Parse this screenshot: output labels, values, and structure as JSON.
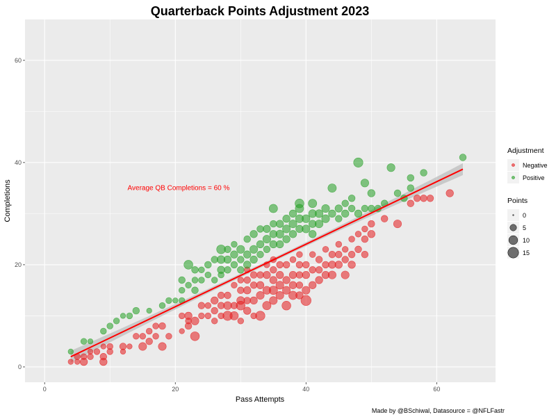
{
  "colors": {
    "negative": "#e41a1c",
    "positive": "#229e22",
    "fit_line": "#ff0000",
    "ribbon": "#bdbdbd",
    "panel": "#ebebeb",
    "grid": "#ffffff"
  },
  "chart_data": {
    "type": "scatter",
    "title": "Quarterback Points Adjustment 2023",
    "xlabel": "Pass Attempts",
    "ylabel": "Completions",
    "xlim": [
      -3,
      69
    ],
    "ylim": [
      -3,
      68
    ],
    "x_ticks": [
      0,
      20,
      40,
      60
    ],
    "y_ticks": [
      0,
      20,
      40,
      60
    ],
    "grid": true,
    "annotation": {
      "text": "Average QB Completions = 60 %",
      "x": 20.5,
      "y": 35
    },
    "fit_line": {
      "x_start": 4,
      "y_start": 2,
      "x_end": 64,
      "y_end": 38.7
    },
    "caption": "Made by @BSchiwal, Datasource = @NFLFastr",
    "legend": {
      "position": "right",
      "color_title": "Adjustment",
      "color_entries": [
        {
          "label": "Negative",
          "key": "negative"
        },
        {
          "label": "Positive",
          "key": "positive"
        }
      ],
      "size_title": "Points",
      "size_entries": [
        {
          "label": "0",
          "value": 0
        },
        {
          "label": "5",
          "value": 5
        },
        {
          "label": "10",
          "value": 10
        },
        {
          "label": "15",
          "value": 15
        }
      ]
    },
    "series": [
      {
        "name": "Negative",
        "points": [
          [
            4,
            1,
            2
          ],
          [
            5,
            2,
            3
          ],
          [
            5,
            1,
            2
          ],
          [
            6,
            1,
            5
          ],
          [
            6,
            2,
            3
          ],
          [
            7,
            2,
            3
          ],
          [
            7,
            3,
            2
          ],
          [
            8,
            3,
            3
          ],
          [
            9,
            1,
            5
          ],
          [
            9,
            2,
            4
          ],
          [
            9,
            4,
            2
          ],
          [
            10,
            3,
            3
          ],
          [
            10,
            4,
            3
          ],
          [
            12,
            3,
            2
          ],
          [
            12,
            4,
            4
          ],
          [
            13,
            4,
            2
          ],
          [
            14,
            6,
            3
          ],
          [
            15,
            4,
            6
          ],
          [
            15,
            6,
            3
          ],
          [
            16,
            5,
            4
          ],
          [
            16,
            7,
            3
          ],
          [
            17,
            6,
            3
          ],
          [
            17,
            8,
            3
          ],
          [
            18,
            4,
            6
          ],
          [
            18,
            8,
            4
          ],
          [
            19,
            6,
            3
          ],
          [
            21,
            7,
            2
          ],
          [
            21,
            10,
            3
          ],
          [
            22,
            8,
            4
          ],
          [
            22,
            9,
            3
          ],
          [
            22,
            10,
            5
          ],
          [
            23,
            6,
            8
          ],
          [
            23,
            9,
            6
          ],
          [
            24,
            10,
            3
          ],
          [
            24,
            12,
            4
          ],
          [
            25,
            10,
            3
          ],
          [
            25,
            12,
            3
          ],
          [
            26,
            9,
            3
          ],
          [
            26,
            11,
            4
          ],
          [
            26,
            13,
            5
          ],
          [
            27,
            10,
            3
          ],
          [
            27,
            12,
            4
          ],
          [
            27,
            14,
            4
          ],
          [
            28,
            10,
            9
          ],
          [
            28,
            12,
            6
          ],
          [
            28,
            14,
            4
          ],
          [
            29,
            10,
            7
          ],
          [
            29,
            12,
            4
          ],
          [
            29,
            16,
            3
          ],
          [
            30,
            9,
            3
          ],
          [
            30,
            12,
            8
          ],
          [
            30,
            13,
            6
          ],
          [
            30,
            15,
            4
          ],
          [
            30,
            17,
            3
          ],
          [
            31,
            11,
            5
          ],
          [
            31,
            13,
            4
          ],
          [
            31,
            15,
            5
          ],
          [
            31,
            17,
            4
          ],
          [
            31,
            19,
            3
          ],
          [
            32,
            10,
            3
          ],
          [
            32,
            13,
            5
          ],
          [
            32,
            16,
            4
          ],
          [
            32,
            18,
            4
          ],
          [
            33,
            10,
            9
          ],
          [
            33,
            14,
            6
          ],
          [
            33,
            16,
            5
          ],
          [
            33,
            18,
            4
          ],
          [
            34,
            12,
            7
          ],
          [
            34,
            15,
            6
          ],
          [
            34,
            18,
            5
          ],
          [
            34,
            20,
            3
          ],
          [
            35,
            13,
            6
          ],
          [
            35,
            15,
            7
          ],
          [
            35,
            17,
            5
          ],
          [
            35,
            19,
            4
          ],
          [
            35,
            21,
            3
          ],
          [
            36,
            14,
            6
          ],
          [
            36,
            16,
            6
          ],
          [
            36,
            18,
            5
          ],
          [
            36,
            20,
            4
          ],
          [
            37,
            12,
            8
          ],
          [
            37,
            15,
            6
          ],
          [
            37,
            17,
            5
          ],
          [
            37,
            20,
            4
          ],
          [
            38,
            14,
            7
          ],
          [
            38,
            16,
            5
          ],
          [
            38,
            18,
            5
          ],
          [
            38,
            21,
            3
          ],
          [
            39,
            14,
            5
          ],
          [
            39,
            16,
            4
          ],
          [
            39,
            18,
            4
          ],
          [
            39,
            20,
            4
          ],
          [
            39,
            22,
            3
          ],
          [
            40,
            13,
            11
          ],
          [
            40,
            15,
            6
          ],
          [
            40,
            18,
            5
          ],
          [
            40,
            20,
            4
          ],
          [
            41,
            16,
            5
          ],
          [
            41,
            19,
            4
          ],
          [
            41,
            22,
            3
          ],
          [
            42,
            17,
            5
          ],
          [
            42,
            19,
            4
          ],
          [
            42,
            21,
            4
          ],
          [
            43,
            18,
            5
          ],
          [
            43,
            20,
            4
          ],
          [
            43,
            23,
            3
          ],
          [
            44,
            18,
            6
          ],
          [
            44,
            20,
            5
          ],
          [
            44,
            22,
            4
          ],
          [
            45,
            20,
            5
          ],
          [
            45,
            22,
            4
          ],
          [
            45,
            24,
            3
          ],
          [
            46,
            18,
            6
          ],
          [
            46,
            21,
            4
          ],
          [
            46,
            23,
            3
          ],
          [
            47,
            20,
            5
          ],
          [
            47,
            22,
            4
          ],
          [
            47,
            25,
            3
          ],
          [
            48,
            23,
            4
          ],
          [
            48,
            26,
            3
          ],
          [
            49,
            22,
            4
          ],
          [
            49,
            25,
            4
          ],
          [
            49,
            27,
            3
          ],
          [
            50,
            26,
            5
          ],
          [
            50,
            28,
            4
          ],
          [
            52,
            29,
            4
          ],
          [
            54,
            28,
            6
          ],
          [
            56,
            32,
            4
          ],
          [
            57,
            33,
            4
          ],
          [
            58,
            33,
            4
          ],
          [
            59,
            33,
            4
          ],
          [
            62,
            34,
            5
          ]
        ]
      },
      {
        "name": "Positive",
        "points": [
          [
            4,
            3,
            2
          ],
          [
            6,
            5,
            3
          ],
          [
            7,
            5,
            2
          ],
          [
            9,
            7,
            3
          ],
          [
            10,
            8,
            3
          ],
          [
            11,
            9,
            3
          ],
          [
            12,
            10,
            2
          ],
          [
            13,
            10,
            3
          ],
          [
            14,
            11,
            4
          ],
          [
            16,
            11,
            2
          ],
          [
            18,
            12,
            3
          ],
          [
            19,
            13,
            3
          ],
          [
            20,
            13,
            2
          ],
          [
            21,
            13,
            3
          ],
          [
            21,
            15,
            3
          ],
          [
            21,
            17,
            4
          ],
          [
            22,
            16,
            3
          ],
          [
            22,
            20,
            8
          ],
          [
            23,
            15,
            4
          ],
          [
            23,
            17,
            3
          ],
          [
            23,
            19,
            4
          ],
          [
            24,
            17,
            3
          ],
          [
            24,
            19,
            3
          ],
          [
            25,
            18,
            3
          ],
          [
            25,
            20,
            4
          ],
          [
            26,
            17,
            3
          ],
          [
            26,
            21,
            4
          ],
          [
            27,
            18,
            3
          ],
          [
            27,
            19,
            5
          ],
          [
            27,
            21,
            6
          ],
          [
            27,
            23,
            8
          ],
          [
            28,
            19,
            4
          ],
          [
            28,
            21,
            5
          ],
          [
            28,
            23,
            4
          ],
          [
            29,
            20,
            4
          ],
          [
            29,
            22,
            5
          ],
          [
            29,
            24,
            3
          ],
          [
            30,
            19,
            4
          ],
          [
            30,
            21,
            4
          ],
          [
            30,
            23,
            6
          ],
          [
            31,
            20,
            5
          ],
          [
            31,
            22,
            5
          ],
          [
            31,
            25,
            4
          ],
          [
            32,
            21,
            5
          ],
          [
            32,
            23,
            6
          ],
          [
            32,
            26,
            5
          ],
          [
            33,
            22,
            4
          ],
          [
            33,
            24,
            5
          ],
          [
            33,
            27,
            4
          ],
          [
            34,
            23,
            4
          ],
          [
            34,
            25,
            6
          ],
          [
            34,
            27,
            5
          ],
          [
            35,
            24,
            5
          ],
          [
            35,
            26,
            5
          ],
          [
            35,
            28,
            4
          ],
          [
            35,
            31,
            7
          ],
          [
            36,
            24,
            5
          ],
          [
            36,
            26,
            6
          ],
          [
            36,
            28,
            5
          ],
          [
            37,
            25,
            5
          ],
          [
            37,
            27,
            6
          ],
          [
            37,
            29,
            5
          ],
          [
            38,
            26,
            5
          ],
          [
            38,
            28,
            6
          ],
          [
            38,
            30,
            5
          ],
          [
            39,
            27,
            5
          ],
          [
            39,
            29,
            6
          ],
          [
            39,
            31,
            7
          ],
          [
            39,
            32,
            8
          ],
          [
            40,
            27,
            6
          ],
          [
            40,
            29,
            6
          ],
          [
            41,
            26,
            5
          ],
          [
            41,
            28,
            5
          ],
          [
            41,
            30,
            6
          ],
          [
            41,
            32,
            7
          ],
          [
            42,
            28,
            6
          ],
          [
            42,
            30,
            6
          ],
          [
            43,
            29,
            6
          ],
          [
            43,
            31,
            6
          ],
          [
            44,
            30,
            5
          ],
          [
            44,
            35,
            7
          ],
          [
            45,
            29,
            4
          ],
          [
            45,
            31,
            5
          ],
          [
            46,
            30,
            5
          ],
          [
            46,
            32,
            4
          ],
          [
            47,
            31,
            4
          ],
          [
            47,
            33,
            4
          ],
          [
            48,
            30,
            5
          ],
          [
            48,
            40,
            9
          ],
          [
            49,
            31,
            4
          ],
          [
            49,
            36,
            6
          ],
          [
            50,
            31,
            4
          ],
          [
            50,
            34,
            5
          ],
          [
            51,
            31,
            4
          ],
          [
            52,
            32,
            4
          ],
          [
            53,
            39,
            6
          ],
          [
            54,
            34,
            4
          ],
          [
            55,
            33,
            4
          ],
          [
            56,
            35,
            4
          ],
          [
            56,
            37,
            4
          ],
          [
            58,
            38,
            4
          ],
          [
            64,
            41,
            4
          ]
        ]
      }
    ]
  }
}
